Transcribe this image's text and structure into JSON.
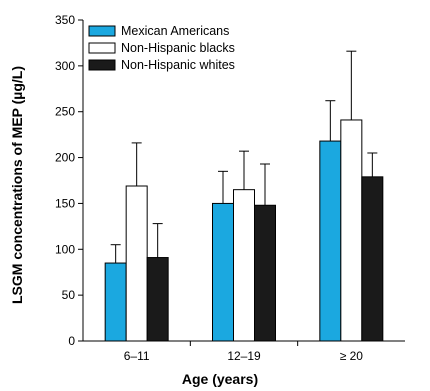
{
  "chart_data": {
    "type": "bar",
    "categories": [
      "6–11",
      "12–19",
      "≥ 20"
    ],
    "series": [
      {
        "name": "Mexican Americans",
        "color": "#1ba8e0",
        "values": [
          85,
          150,
          218
        ],
        "error_upper": [
          105,
          185,
          262
        ]
      },
      {
        "name": "Non-Hispanic blacks",
        "color": "#ffffff",
        "values": [
          169,
          165,
          241
        ],
        "error_upper": [
          216,
          207,
          316
        ]
      },
      {
        "name": "Non-Hispanic whites",
        "color": "#1a1a1a",
        "values": [
          91,
          148,
          179
        ],
        "error_upper": [
          128,
          193,
          205
        ]
      }
    ],
    "xlabel": "Age (years)",
    "ylabel": "LSGM concentrations of MEP (µg/L)",
    "ylim": [
      0,
      350
    ],
    "yticks": [
      0,
      50,
      100,
      150,
      200,
      250,
      300,
      350
    ],
    "grid": false,
    "legend_position": "top-left"
  }
}
